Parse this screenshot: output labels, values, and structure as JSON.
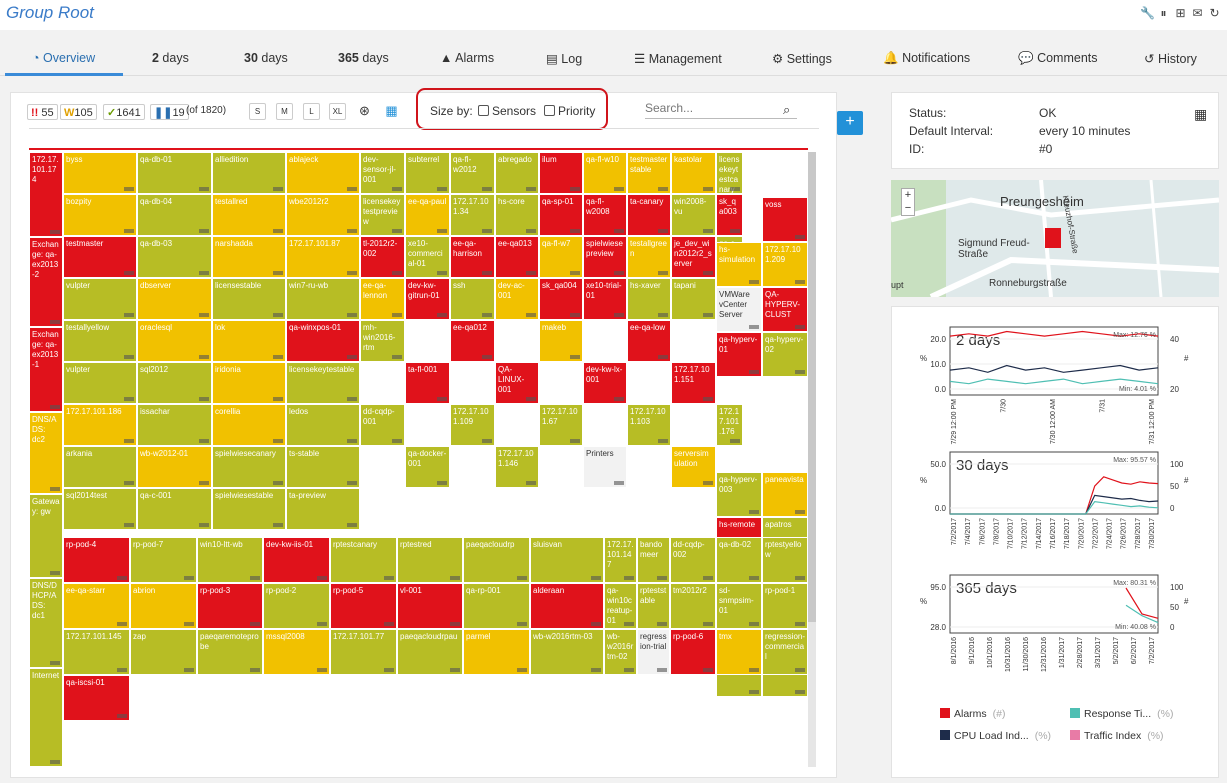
{
  "header": {
    "title": "Group Root",
    "icons": [
      "wrench-icon",
      "pause-icon",
      "add-icon",
      "mail-icon",
      "refresh-icon"
    ]
  },
  "tabs": [
    {
      "label": "Overview",
      "icon": "gauge-icon"
    },
    {
      "bold": "2",
      "label": " days"
    },
    {
      "bold": "30",
      "label": " days"
    },
    {
      "bold": "365",
      "label": " days"
    },
    {
      "label": "Alarms",
      "icon": "warning-icon"
    },
    {
      "label": "Log",
      "icon": "list-icon"
    },
    {
      "label": "Management",
      "icon": "sliders-icon"
    },
    {
      "label": "Settings",
      "icon": "gear-icon"
    },
    {
      "label": "Notifications",
      "icon": "bell-icon"
    },
    {
      "label": "Comments",
      "icon": "comment-icon"
    },
    {
      "label": "History",
      "icon": "history-icon"
    }
  ],
  "toolbar": {
    "alarms": "55",
    "warnings": "105",
    "ok": "1641",
    "paused": "19",
    "total": "(of 1820)",
    "sizes": [
      "S",
      "M",
      "L",
      "XL"
    ],
    "sizeby_label": "Size by:",
    "sensors_label": "Sensors",
    "priority_label": "Priority",
    "search_placeholder": "Search..."
  },
  "status": {
    "status_label": "Status:",
    "status_value": "OK",
    "interval_label": "Default Interval:",
    "interval_value": "every  10 minutes",
    "id_label": "ID:",
    "id_value": "#0"
  },
  "map": {
    "place": "Preungesheim",
    "street1": "Sigmund Freud-Straße",
    "street2": "Ronneburgstraße",
    "street3": "Kreuzhof-Straße",
    "footer": "upt"
  },
  "colors": {
    "red": "#e0121b",
    "orange": "#f1c100",
    "green": "#b7bd25"
  },
  "treemap": [
    {
      "t": "172.17.101.174",
      "c": "r"
    },
    {
      "t": "Exchange: qa-ex2013-2",
      "c": "r"
    },
    {
      "t": "Exchange: qa-ex2013-1",
      "c": "r"
    },
    {
      "t": "DNS/ADS: dc2",
      "c": "o"
    },
    {
      "t": "Gateway: gw",
      "c": "g"
    },
    {
      "t": "DNS/DHCP/ADS: dc1",
      "c": "g"
    },
    {
      "t": "Internet",
      "c": "g"
    },
    {
      "t": "byss",
      "c": "o"
    },
    {
      "t": "qa-db-01",
      "c": "g"
    },
    {
      "t": "alliedition",
      "c": "g"
    },
    {
      "t": "ablajeck",
      "c": "o"
    },
    {
      "t": "bozpity",
      "c": "o"
    },
    {
      "t": "qa-db-04",
      "c": "g"
    },
    {
      "t": "testallred",
      "c": "o"
    },
    {
      "t": "wbe2012r2",
      "c": "o"
    },
    {
      "t": "testmaster",
      "c": "r"
    },
    {
      "t": "qa-db-03",
      "c": "g"
    },
    {
      "t": "narshadda",
      "c": "o"
    },
    {
      "t": "172.17.101.87",
      "c": "o"
    },
    {
      "t": "vulpter",
      "c": "g"
    },
    {
      "t": "dbserver",
      "c": "o"
    },
    {
      "t": "licensestable",
      "c": "g"
    },
    {
      "t": "win7-ru-wb",
      "c": "g"
    },
    {
      "t": "testallyellow",
      "c": "g"
    },
    {
      "t": "oraclesql",
      "c": "o"
    },
    {
      "t": "lok",
      "c": "o"
    },
    {
      "t": "qa-winxpos-01",
      "c": "r"
    },
    {
      "t": "vulpter",
      "c": "g"
    },
    {
      "t": "sql2012",
      "c": "g"
    },
    {
      "t": "iridonia",
      "c": "o"
    },
    {
      "t": "licensekeytestable",
      "c": "g"
    },
    {
      "t": "172.17.101.186",
      "c": "o"
    },
    {
      "t": "issachar",
      "c": "g"
    },
    {
      "t": "corellia",
      "c": "o"
    },
    {
      "t": "ledos",
      "c": "g"
    },
    {
      "t": "arkania",
      "c": "g"
    },
    {
      "t": "wb-w2012-01",
      "c": "o"
    },
    {
      "t": "spielwiesecanary",
      "c": "g"
    },
    {
      "t": "ts-stable",
      "c": "g"
    },
    {
      "t": "sql2014test",
      "c": "g"
    },
    {
      "t": "qa-c-001",
      "c": "g"
    },
    {
      "t": "spielwiesestable",
      "c": "g"
    },
    {
      "t": "ta-preview",
      "c": "g"
    },
    {
      "t": "dev-sensor-jl-001",
      "c": "g"
    },
    {
      "t": "subterrel",
      "c": "g"
    },
    {
      "t": "qa-fl-w2012",
      "c": "g"
    },
    {
      "t": "abregado",
      "c": "g"
    },
    {
      "t": "ilum",
      "c": "r"
    },
    {
      "t": "qa-fl-w10",
      "c": "o"
    },
    {
      "t": "testmaster stable",
      "c": "o"
    },
    {
      "t": "kastolar",
      "c": "o"
    },
    {
      "t": "licensekeytestcanary",
      "c": "g"
    },
    {
      "t": "licensekeytestpreview",
      "c": "g"
    },
    {
      "t": "ee-qa-paul",
      "c": "o"
    },
    {
      "t": "172.17.101.34",
      "c": "g"
    },
    {
      "t": "hs-core",
      "c": "g"
    },
    {
      "t": "qa-sp-01",
      "c": "r"
    },
    {
      "t": "qa-fl-w2008",
      "c": "r"
    },
    {
      "t": "ta-canary",
      "c": "r"
    },
    {
      "t": "win2008-vu",
      "c": "g"
    },
    {
      "t": "sk_qa003",
      "c": "r"
    },
    {
      "t": "tl-2012r2-002",
      "c": "r"
    },
    {
      "t": "xe10-commercial-01",
      "c": "g"
    },
    {
      "t": "ee-qa-harrison",
      "c": "r"
    },
    {
      "t": "ee-qa013",
      "c": "r"
    },
    {
      "t": "qa-fl-w7",
      "c": "o"
    },
    {
      "t": "spielwiesepreview",
      "c": "r"
    },
    {
      "t": "testallgreen",
      "c": "o"
    },
    {
      "t": "je_dev_win2012r2_server",
      "c": "r"
    },
    {
      "t": "qa-c-002",
      "c": "g"
    },
    {
      "t": "ee-qa-lennon",
      "c": "o"
    },
    {
      "t": "dev-kw-gitrun-01",
      "c": "r"
    },
    {
      "t": "ssh",
      "c": "g"
    },
    {
      "t": "dev-ac-001",
      "c": "o"
    },
    {
      "t": "sk_qa004",
      "c": "r"
    },
    {
      "t": "xe10-trial-01",
      "c": "r"
    },
    {
      "t": "hs-xaver",
      "c": "g"
    },
    {
      "t": "tapani",
      "c": "g"
    },
    {
      "t": "factoryt est",
      "c": "o"
    },
    {
      "t": "mh-win2016-rtm",
      "c": "g"
    },
    {
      "t": "ee-qa012",
      "c": "r"
    },
    {
      "t": "makeb",
      "c": "o"
    },
    {
      "t": "ee-qa-low",
      "c": "r"
    },
    {
      "t": "sk_qa002",
      "c": "g"
    },
    {
      "t": "ta-fl-001",
      "c": "r"
    },
    {
      "t": "QA-LINUX-001",
      "c": "r"
    },
    {
      "t": "dev-kw-lx-001",
      "c": "r"
    },
    {
      "t": "172.17.101.151",
      "c": "r"
    },
    {
      "t": "dd-cqdp-001",
      "c": "g"
    },
    {
      "t": "172.17.101.109",
      "c": "g"
    },
    {
      "t": "172.17.101.67",
      "c": "g"
    },
    {
      "t": "172.17.101.103",
      "c": "g"
    },
    {
      "t": "172.17.101.176",
      "c": "g"
    },
    {
      "t": "qa-docker-001",
      "c": "g"
    },
    {
      "t": "172.17.101.146",
      "c": "g"
    },
    {
      "t": "Printers",
      "c": "w"
    },
    {
      "t": "serversimulation",
      "c": "o"
    },
    {
      "t": "voss",
      "c": "r"
    },
    {
      "t": "hs-simulation",
      "c": "o"
    },
    {
      "t": "172.17.101.209",
      "c": "o"
    },
    {
      "t": "VMWare vCenter Server",
      "c": "w"
    },
    {
      "t": "QA-HYPERV-CLUST",
      "c": "r"
    },
    {
      "t": "qa-hyperv-01",
      "c": "r"
    },
    {
      "t": "qa-hyperv-02",
      "c": "g"
    },
    {
      "t": "qa-hyperv-003",
      "c": "g"
    },
    {
      "t": "paneavista",
      "c": "o"
    },
    {
      "t": "hs-remote",
      "c": "r"
    },
    {
      "t": "apatros",
      "c": "g"
    },
    {
      "t": "sullust",
      "c": "o"
    },
    {
      "t": "rptestpreview",
      "c": "o"
    },
    {
      "t": "gordin",
      "c": "o"
    },
    {
      "t": "ee-qa011",
      "c": "r"
    },
    {
      "t": "qa-db-05",
      "c": "g"
    },
    {
      "t": "172.17.101.4",
      "c": "g"
    },
    {
      "t": "rp-pod-4",
      "c": "r"
    },
    {
      "t": "rp-pod-7",
      "c": "g"
    },
    {
      "t": "win10-ltt-wb",
      "c": "g"
    },
    {
      "t": "dev-kw-iis-01",
      "c": "r"
    },
    {
      "t": "rptestcanary",
      "c": "g"
    },
    {
      "t": "rptestred",
      "c": "g"
    },
    {
      "t": "paeqacloudrp",
      "c": "g"
    },
    {
      "t": "sluisvan",
      "c": "g"
    },
    {
      "t": "172.17.101.147",
      "c": "g"
    },
    {
      "t": "bandomeer",
      "c": "g"
    },
    {
      "t": "dd-cqdp-002",
      "c": "g"
    },
    {
      "t": "qa-db-02",
      "c": "g"
    },
    {
      "t": "rptestyellow",
      "c": "g"
    },
    {
      "t": "ee-qa-starr",
      "c": "o"
    },
    {
      "t": "abrion",
      "c": "o"
    },
    {
      "t": "rp-pod-3",
      "c": "r"
    },
    {
      "t": "rp-pod-2",
      "c": "g"
    },
    {
      "t": "rp-pod-5",
      "c": "r"
    },
    {
      "t": "vl-001",
      "c": "r"
    },
    {
      "t": "qa-rp-001",
      "c": "g"
    },
    {
      "t": "alderaan",
      "c": "r"
    },
    {
      "t": "qa-win10creatup-01",
      "c": "g"
    },
    {
      "t": "rpteststable",
      "c": "g"
    },
    {
      "t": "tm2012r2",
      "c": "g"
    },
    {
      "t": "sd-snmpsim-01",
      "c": "g"
    },
    {
      "t": "rp-pod-1",
      "c": "g"
    },
    {
      "t": "172.17.101.145",
      "c": "g"
    },
    {
      "t": "zap",
      "c": "g"
    },
    {
      "t": "paeqaremoteprobe",
      "c": "g"
    },
    {
      "t": "mssql2008",
      "c": "o"
    },
    {
      "t": "172.17.101.77",
      "c": "g"
    },
    {
      "t": "paeqacloudrpau",
      "c": "g"
    },
    {
      "t": "parmel",
      "c": "o"
    },
    {
      "t": "wb-w2016rtm-03",
      "c": "g"
    },
    {
      "t": "wb-w2016rtm-02",
      "c": "g"
    },
    {
      "t": "regression-trial",
      "c": "w"
    },
    {
      "t": "rp-pod-6",
      "c": "r"
    },
    {
      "t": "tmx",
      "c": "o"
    },
    {
      "t": "regression-commercial",
      "c": "g"
    },
    {
      "t": "qa-iscsi-01",
      "c": "r"
    }
  ],
  "chart_data": [
    {
      "type": "line",
      "title": "2 days",
      "x_ticks": [
        "7/29 12:00 PM",
        "7/30",
        "7/30 12:00 AM",
        "7/31",
        "7/31 12:00 PM"
      ],
      "y_ticks": [
        "20.0",
        "10.0",
        "0.0"
      ],
      "y2_ticks": [
        "40",
        "20"
      ],
      "ylabel": "%",
      "y2label": "#",
      "annotations": [
        "Max: 12.76 %",
        "Min: 4.01 %"
      ],
      "series": [
        {
          "color": "#e0121b",
          "values": [
            26,
            27,
            26,
            28,
            27,
            26,
            27,
            28,
            27,
            26,
            27,
            26
          ]
        },
        {
          "color": "#1e2c4a",
          "values": [
            11,
            12,
            10,
            13,
            11,
            12,
            10,
            11,
            12,
            13,
            11,
            12
          ]
        },
        {
          "color": "#4fbfb3",
          "values": [
            6,
            5,
            7,
            6,
            5,
            6,
            7,
            5,
            6,
            7,
            6,
            5
          ]
        }
      ],
      "ylim": [
        0,
        30
      ]
    },
    {
      "type": "line",
      "title": "30 days",
      "x_ticks": [
        "7/2/2017",
        "7/4/2017",
        "7/6/2017",
        "7/8/2017",
        "7/10/2017",
        "7/12/2017",
        "7/14/2017",
        "7/16/2017",
        "7/18/2017",
        "7/20/2017",
        "7/22/2017",
        "7/24/2017",
        "7/26/2017",
        "7/28/2017",
        "7/30/2017"
      ],
      "y_ticks": [
        "50.0",
        "0.0"
      ],
      "y2_ticks": [
        "100",
        "50",
        "0"
      ],
      "ylabel": "%",
      "y2label": "#",
      "annotations": [
        "Max: 95.57 %"
      ],
      "series": [
        {
          "color": "#e0121b",
          "values": [
            0,
            0,
            0,
            0,
            0,
            0,
            0,
            0,
            0,
            0,
            0,
            0,
            0,
            0,
            0,
            0,
            45,
            60,
            55,
            50,
            48,
            52,
            50,
            49
          ]
        },
        {
          "color": "#1e2c4a",
          "values": [
            0,
            0,
            0,
            0,
            0,
            0,
            0,
            0,
            0,
            0,
            0,
            0,
            0,
            0,
            0,
            0,
            30,
            28,
            26,
            24,
            25,
            22,
            20,
            21
          ]
        },
        {
          "color": "#4fbfb3",
          "values": [
            0,
            0,
            0,
            0,
            0,
            0,
            0,
            0,
            0,
            0,
            0,
            0,
            0,
            0,
            0,
            0,
            20,
            18,
            16,
            14,
            12,
            13,
            11,
            10
          ]
        }
      ],
      "ylim": [
        0,
        100
      ]
    },
    {
      "type": "line",
      "title": "365 days",
      "x_ticks": [
        "8/1/2016",
        "9/1/2016",
        "10/1/2016",
        "10/31/2016",
        "11/30/2016",
        "12/31/2016",
        "1/31/2017",
        "2/28/2017",
        "3/31/2017",
        "5/2/2017",
        "6/2/2017",
        "7/2/2017"
      ],
      "y_ticks": [
        "95.0",
        "28.0"
      ],
      "y2_ticks": [
        "100",
        "50",
        "0"
      ],
      "ylabel": "%",
      "y2label": "#",
      "annotations": [
        "Max: 80.31 %",
        "Min: 40.08 %"
      ],
      "series": [
        {
          "color": "#e0121b",
          "values": [
            null,
            null,
            null,
            null,
            null,
            null,
            null,
            null,
            null,
            null,
            null,
            80,
            50,
            45
          ]
        },
        {
          "color": "#4fbfb3",
          "values": [
            null,
            null,
            null,
            null,
            null,
            null,
            null,
            null,
            null,
            null,
            null,
            60,
            48,
            40
          ]
        }
      ],
      "ylim": [
        28,
        95
      ]
    }
  ],
  "legend": [
    {
      "label": "Alarms",
      "unit": "(#)",
      "color": "#e0121b"
    },
    {
      "label": "Response Ti...",
      "unit": "(%)",
      "color": "#4fbfb3"
    },
    {
      "label": "CPU Load Ind...",
      "unit": "(%)",
      "color": "#1e2c4a"
    },
    {
      "label": "Traffic Index",
      "unit": "(%)",
      "color": "#e87ba6"
    }
  ]
}
